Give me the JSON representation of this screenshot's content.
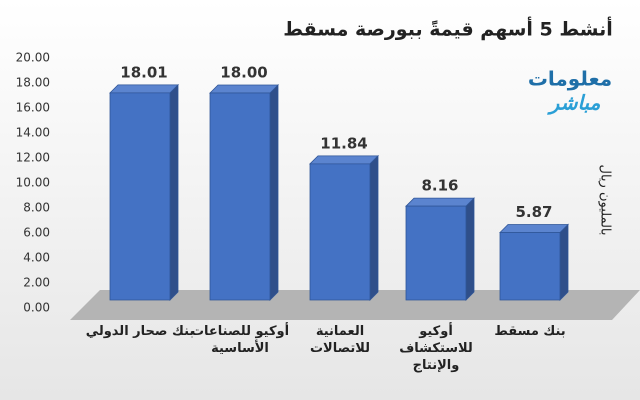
{
  "chart_data": {
    "type": "bar3d",
    "title": "أنشط 5 أسهم قيمةً ببورصة مسقط",
    "y_label": "بالمليون ريال",
    "annotations": [
      "معلومات",
      "مباشر"
    ],
    "categories": [
      "بنك صحار الدولي",
      "أوكيو للصناعات الأساسية",
      "العمانية للاتصالات",
      "أوكيو للاستكشاف والإنتاج",
      "بنك مسقط"
    ],
    "values": [
      18.01,
      18.0,
      11.84,
      8.16,
      5.87
    ],
    "value_labels": [
      "18.01",
      "18.00",
      "11.84",
      "8.16",
      "5.87"
    ],
    "color": "#4472c4",
    "ylim": [
      0,
      20
    ],
    "yticks": [
      {
        "value": 0,
        "label": "0.00"
      },
      {
        "value": 2,
        "label": "2.00"
      },
      {
        "value": 4,
        "label": "4.00"
      },
      {
        "value": 6,
        "label": "6.00"
      },
      {
        "value": 8,
        "label": "8.00"
      },
      {
        "value": 10,
        "label": "10.00"
      },
      {
        "value": 12,
        "label": "12.00"
      },
      {
        "value": 14,
        "label": "14.00"
      },
      {
        "value": 16,
        "label": "16.00"
      },
      {
        "value": 18,
        "label": "18.00"
      },
      {
        "value": 20,
        "label": "20.00"
      }
    ]
  }
}
